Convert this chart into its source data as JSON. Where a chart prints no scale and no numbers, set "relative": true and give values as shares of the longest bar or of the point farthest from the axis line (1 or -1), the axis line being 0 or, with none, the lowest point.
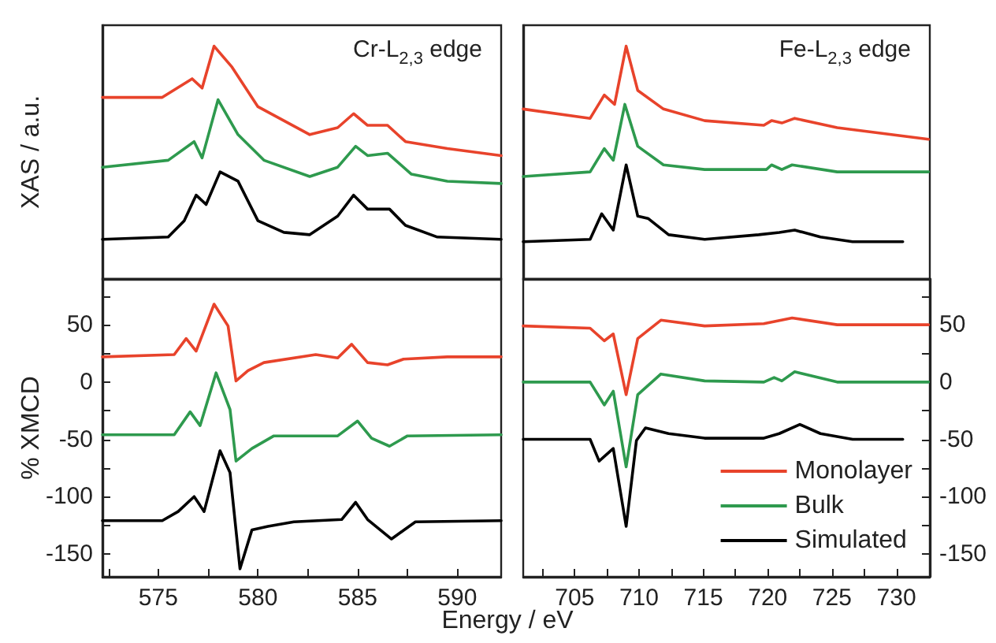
{
  "chart_data": [
    {
      "type": "line",
      "relative": true,
      "ylabel": "XAS / a.u.",
      "annotations": [
        "Cr-L$_{2,3}$ edge"
      ],
      "xlim": [
        572.2,
        592.2
      ],
      "grid": false,
      "legend": false,
      "series": [
        {
          "color": "#e8432b",
          "x": [
            572.2,
            575.2,
            576.7,
            577.2,
            577.8,
            578.7,
            580.0,
            582.6,
            584.0,
            584.8,
            585.5,
            586.5,
            587.4,
            589.5,
            592.2
          ],
          "values": [
            0.78,
            0.78,
            0.86,
            0.82,
            1.0,
            0.91,
            0.74,
            0.62,
            0.65,
            0.71,
            0.66,
            0.66,
            0.59,
            0.56,
            0.53
          ]
        },
        {
          "color": "#2e9a4e",
          "x": [
            572.2,
            575.5,
            576.8,
            577.2,
            578.0,
            579.0,
            580.3,
            582.6,
            584.0,
            584.9,
            585.5,
            586.5,
            587.7,
            589.5,
            592.2
          ],
          "values": [
            0.48,
            0.51,
            0.59,
            0.52,
            0.77,
            0.62,
            0.51,
            0.44,
            0.48,
            0.57,
            0.53,
            0.54,
            0.45,
            0.42,
            0.41
          ]
        },
        {
          "color": "#000000",
          "x": [
            572.2,
            575.5,
            576.3,
            576.9,
            577.4,
            578.1,
            579.0,
            580.0,
            581.3,
            582.6,
            584.0,
            584.8,
            585.5,
            586.6,
            587.4,
            589.0,
            592.2
          ],
          "values": [
            0.17,
            0.18,
            0.25,
            0.36,
            0.32,
            0.46,
            0.42,
            0.25,
            0.2,
            0.19,
            0.27,
            0.36,
            0.3,
            0.3,
            0.23,
            0.18,
            0.17
          ]
        }
      ]
    },
    {
      "type": "line",
      "relative": true,
      "annotations": [
        "Fe-L$_{2,3}$ edge"
      ],
      "xlim": [
        701,
        732.6
      ],
      "grid": false,
      "legend": false,
      "series": [
        {
          "color": "#e8432b",
          "x": [
            701.0,
            706.2,
            707.3,
            708.1,
            709.0,
            709.9,
            711.9,
            715.1,
            719.7,
            720.3,
            721.1,
            722.1,
            725.4,
            732.5
          ],
          "values": [
            0.73,
            0.69,
            0.79,
            0.75,
            1.0,
            0.81,
            0.73,
            0.68,
            0.66,
            0.68,
            0.67,
            0.69,
            0.65,
            0.6
          ]
        },
        {
          "color": "#2e9a4e",
          "x": [
            701.0,
            706.2,
            707.3,
            708.0,
            708.9,
            709.9,
            711.9,
            715.1,
            719.9,
            720.3,
            721.1,
            721.9,
            725.4,
            732.5
          ],
          "values": [
            0.44,
            0.46,
            0.56,
            0.51,
            0.75,
            0.57,
            0.49,
            0.47,
            0.47,
            0.49,
            0.47,
            0.49,
            0.46,
            0.46
          ]
        },
        {
          "color": "#000000",
          "x": [
            701.0,
            706.2,
            707.1,
            708.0,
            709.0,
            709.9,
            710.7,
            712.3,
            715.1,
            719.3,
            720.9,
            722.1,
            724.1,
            726.6,
            730.5
          ],
          "values": [
            0.16,
            0.17,
            0.28,
            0.21,
            0.49,
            0.27,
            0.26,
            0.19,
            0.17,
            0.19,
            0.2,
            0.21,
            0.18,
            0.16,
            0.16
          ]
        }
      ]
    },
    {
      "type": "line",
      "ylabel": "% XMCD",
      "xlabel": "Energy / eV",
      "xlim": [
        572.2,
        592.2
      ],
      "ylim": [
        -170,
        90
      ],
      "grid": false,
      "legend": false,
      "xticks": [
        {
          "value": 572.5,
          "label": null
        },
        575,
        {
          "value": 577.5,
          "label": null
        },
        580,
        {
          "value": 582.5,
          "label": null
        },
        585,
        {
          "value": 587.5,
          "label": null
        },
        590
      ],
      "yticks": [
        -150,
        {
          "value": -125,
          "label": null
        },
        -100,
        {
          "value": -75,
          "label": null
        },
        -50,
        {
          "value": -25,
          "label": null
        },
        0,
        {
          "value": 25,
          "label": null
        },
        50,
        {
          "value": 75,
          "label": null
        }
      ],
      "series": [
        {
          "color": "#e8432b",
          "x": [
            572.2,
            575.8,
            576.4,
            576.9,
            577.8,
            578.5,
            578.9,
            579.5,
            580.3,
            582.9,
            584.0,
            584.7,
            585.5,
            586.5,
            587.3,
            589.5,
            592.2
          ],
          "values": [
            22,
            24,
            38,
            27,
            68,
            49,
            1,
            10,
            17,
            24,
            21,
            33,
            17,
            15,
            20,
            22,
            22
          ]
        },
        {
          "color": "#2e9a4e",
          "x": [
            572.2,
            575.8,
            576.6,
            577.1,
            577.9,
            578.6,
            578.9,
            579.7,
            580.8,
            584.0,
            585.0,
            585.7,
            586.6,
            587.5,
            592.2
          ],
          "values": [
            -46,
            -46,
            -26,
            -38,
            8,
            -24,
            -69,
            -58,
            -47,
            -47,
            -34,
            -49,
            -56,
            -47,
            -46
          ]
        },
        {
          "color": "#000000",
          "x": [
            572.2,
            575.2,
            576.0,
            576.8,
            577.3,
            578.1,
            578.6,
            579.1,
            579.7,
            580.5,
            581.8,
            584.2,
            584.9,
            585.5,
            586.7,
            587.9,
            592.2
          ],
          "values": [
            -121,
            -121,
            -113,
            -100,
            -113,
            -60,
            -79,
            -163,
            -129,
            -126,
            -122,
            -120,
            -105,
            -120,
            -137,
            -122,
            -121
          ]
        }
      ]
    },
    {
      "type": "line",
      "xlim": [
        701,
        732.6
      ],
      "y2lim": [
        -170,
        90
      ],
      "grid": false,
      "legend": "bottom right",
      "xticks": [
        {
          "value": 702.5,
          "label": null
        },
        705,
        {
          "value": 707.5,
          "label": null
        },
        710,
        {
          "value": 712.5,
          "label": null
        },
        715,
        {
          "value": 717.5,
          "label": null
        },
        720,
        {
          "value": 722.5,
          "label": null
        },
        725,
        {
          "value": 727.5,
          "label": null
        },
        730
      ],
      "y2ticks": [
        -150,
        {
          "value": -125,
          "label": null
        },
        -100,
        {
          "value": -75,
          "label": null
        },
        -50,
        {
          "value": -25,
          "label": null
        },
        0,
        {
          "value": 25,
          "label": null
        },
        50,
        {
          "value": 75,
          "label": null
        }
      ],
      "series": [
        {
          "name": "Monolayer",
          "axis": "y2",
          "color": "#e8432b",
          "x": [
            701.0,
            706.2,
            707.3,
            708.0,
            709.0,
            709.9,
            711.7,
            715.1,
            719.7,
            721.9,
            725.4,
            732.5
          ],
          "values": [
            49,
            47,
            36,
            42,
            -11,
            38,
            54,
            49,
            51,
            56,
            50,
            50
          ]
        },
        {
          "name": "Bulk",
          "axis": "y2",
          "color": "#2e9a4e",
          "x": [
            701.0,
            706.2,
            707.3,
            708.0,
            709.0,
            709.9,
            711.7,
            715.1,
            719.7,
            720.5,
            721.1,
            722.1,
            725.4,
            732.5
          ],
          "values": [
            0,
            0,
            -20,
            -8,
            -74,
            -11,
            7,
            1,
            0,
            4,
            1,
            9,
            0,
            0
          ]
        },
        {
          "name": "Simulated",
          "axis": "y2",
          "color": "#000000",
          "x": [
            701.0,
            706.2,
            706.9,
            708.0,
            709.0,
            709.8,
            710.5,
            712.3,
            715.1,
            719.7,
            720.9,
            722.5,
            724.1,
            726.6,
            730.5
          ],
          "values": [
            -50,
            -50,
            -69,
            -58,
            -126,
            -51,
            -40,
            -45,
            -49,
            -49,
            -45,
            -37,
            -45,
            -50,
            -50
          ]
        }
      ]
    }
  ]
}
